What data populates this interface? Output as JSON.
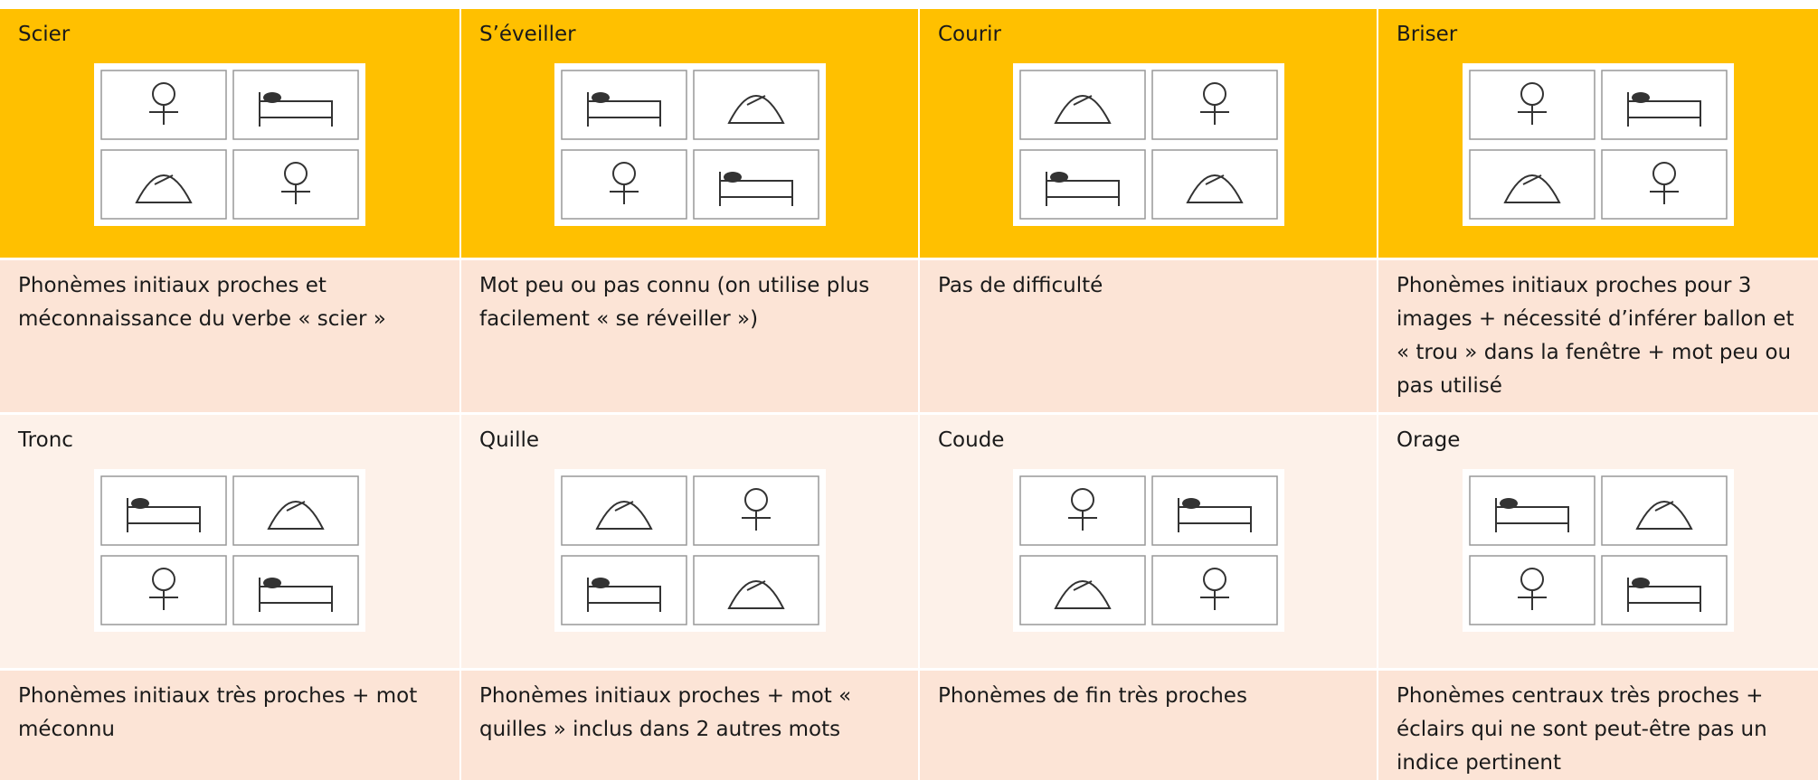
{
  "table": {
    "rows": [
      {
        "cells": [
          {
            "word": "Scier",
            "note": "Phonèmes initiaux proches et méconnaissance du verbe « scier »"
          },
          {
            "word": "S’éveiller",
            "note": "Mot peu ou pas connu (on utilise plus facilement « se réveiller »)"
          },
          {
            "word": "Courir",
            "note": "Pas de difficulté"
          },
          {
            "word": "Briser",
            "note": "Phonèmes initiaux proches pour 3 images + nécessité d’inférer ballon et « trou » dans la fenêtre + mot peu ou pas utilisé"
          }
        ]
      },
      {
        "cells": [
          {
            "word": "Tronc",
            "note": "Phonèmes initiaux très proches + mot méconnu"
          },
          {
            "word": "Quille",
            "note": "Phonèmes initiaux proches + mot « quilles » inclus dans 2 autres mots"
          },
          {
            "word": "Coude",
            "note": "Phonèmes de fin très proches"
          },
          {
            "word": "Orage",
            "note": "Phonèmes centraux très proches + éclairs qui ne sont peut-être pas un indice pertinent"
          }
        ]
      }
    ]
  }
}
